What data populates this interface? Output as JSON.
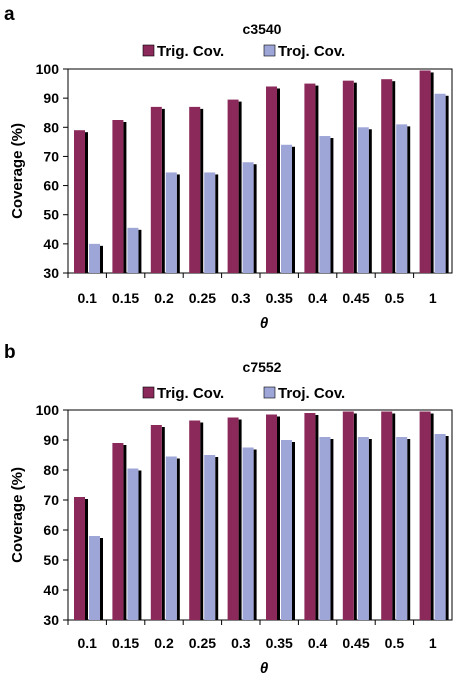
{
  "panels": [
    {
      "label": "a",
      "colors": {
        "trig": "#8b2a5a",
        "troj": "#9ea6d8",
        "shadow": "#000000"
      }
    },
    {
      "label": "b",
      "colors": {
        "trig": "#8b2a5a",
        "troj": "#9ea6d8",
        "shadow": "#000000"
      }
    }
  ],
  "chart_data": [
    {
      "type": "bar",
      "title": "c3540",
      "xlabel": "θ",
      "ylabel": "Coverage (%)",
      "categories": [
        "0.1",
        "0.15",
        "0.2",
        "0.25",
        "0.3",
        "0.35",
        "0.4",
        "0.45",
        "0.5",
        "1"
      ],
      "series": [
        {
          "name": "Trig. Cov.",
          "values": [
            79,
            82.5,
            87,
            87,
            89.5,
            94,
            95,
            96,
            96.5,
            99.5
          ]
        },
        {
          "name": "Troj. Cov.",
          "values": [
            40,
            45.5,
            64.5,
            64.5,
            68,
            74,
            77,
            80,
            81,
            91.5
          ]
        }
      ],
      "ylim": [
        30,
        100
      ],
      "yticks": [
        30,
        40,
        50,
        60,
        70,
        80,
        90,
        100
      ],
      "grid": false,
      "legend": "top"
    },
    {
      "type": "bar",
      "title": "c7552",
      "xlabel": "θ",
      "ylabel": "Coverage (%)",
      "categories": [
        "0.1",
        "0.15",
        "0.2",
        "0.25",
        "0.3",
        "0.35",
        "0.4",
        "0.45",
        "0.5",
        "1"
      ],
      "series": [
        {
          "name": "Trig. Cov.",
          "values": [
            71,
            89,
            95,
            96.5,
            97.5,
            98.5,
            99,
            99.5,
            99.5,
            99.5
          ]
        },
        {
          "name": "Troj. Cov.",
          "values": [
            58,
            80.5,
            84.5,
            85,
            87.5,
            90,
            91,
            91,
            91,
            92
          ]
        }
      ],
      "ylim": [
        30,
        100
      ],
      "yticks": [
        30,
        40,
        50,
        60,
        70,
        80,
        90,
        100
      ],
      "grid": false,
      "legend": "top"
    }
  ]
}
